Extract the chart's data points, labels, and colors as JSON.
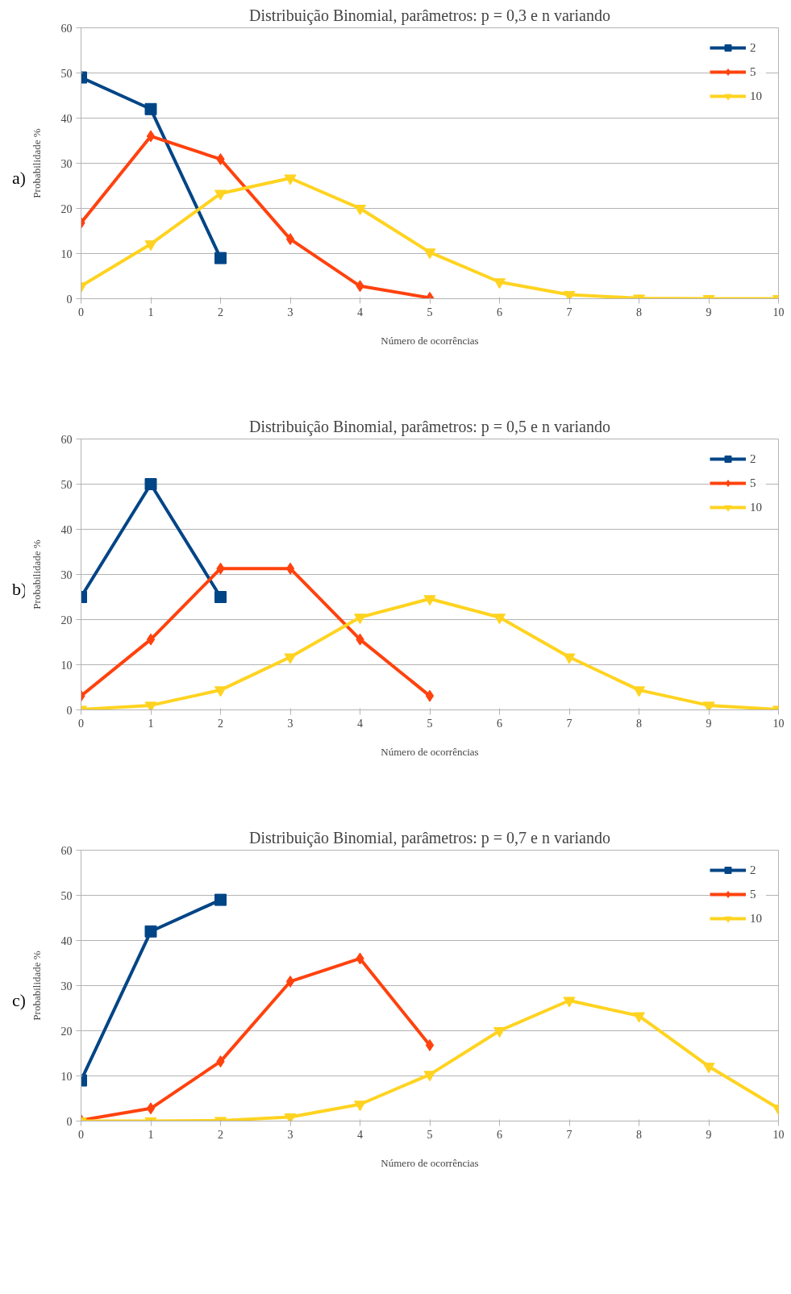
{
  "chart_data": [
    {
      "type": "line",
      "title": "Distribuição Binomial, parâmetros: p = 0,3 e n variando",
      "xlabel": "Número de ocorrências",
      "ylabel": "Probabilidade %",
      "annotations": [
        "a)"
      ],
      "xlim": [
        0,
        10
      ],
      "ylim": [
        0,
        60
      ],
      "xticks": [
        0,
        1,
        2,
        3,
        4,
        5,
        6,
        7,
        8,
        9,
        10
      ],
      "yticks": [
        0,
        10,
        20,
        30,
        40,
        50,
        60
      ],
      "grid": "y",
      "legend": "top right",
      "line_style": "solid",
      "series": [
        {
          "name": "2",
          "color": "#004586",
          "marker": "square",
          "x": [
            0,
            1,
            2
          ],
          "values": [
            49,
            42,
            9
          ]
        },
        {
          "name": "5",
          "color": "#ff420e",
          "marker": "diamond",
          "x": [
            0,
            1,
            2,
            3,
            4,
            5
          ],
          "values": [
            16.8,
            36.0,
            30.9,
            13.2,
            2.8,
            0.2
          ]
        },
        {
          "name": "10",
          "color": "#ffd320",
          "marker": "triangle",
          "x": [
            0,
            1,
            2,
            3,
            4,
            5,
            6,
            7,
            8,
            9,
            10
          ],
          "values": [
            2.8,
            12.1,
            23.3,
            26.7,
            20.0,
            10.3,
            3.7,
            0.9,
            0.1,
            0.0,
            0.0
          ]
        }
      ]
    },
    {
      "type": "line",
      "title": "Distribuição Binomial, parâmetros: p = 0,5 e n variando",
      "xlabel": "Número de ocorrências",
      "ylabel": "Probabilidade %",
      "annotations": [
        "b)"
      ],
      "xlim": [
        0,
        10
      ],
      "ylim": [
        0,
        60
      ],
      "xticks": [
        0,
        1,
        2,
        3,
        4,
        5,
        6,
        7,
        8,
        9,
        10
      ],
      "yticks": [
        0,
        10,
        20,
        30,
        40,
        50,
        60
      ],
      "grid": "y",
      "legend": "top right",
      "line_style": "solid",
      "series": [
        {
          "name": "2",
          "color": "#004586",
          "marker": "square",
          "x": [
            0,
            1,
            2
          ],
          "values": [
            25,
            50,
            25
          ]
        },
        {
          "name": "5",
          "color": "#ff420e",
          "marker": "diamond",
          "x": [
            0,
            1,
            2,
            3,
            4,
            5
          ],
          "values": [
            3.1,
            15.6,
            31.3,
            31.3,
            15.6,
            3.1
          ]
        },
        {
          "name": "10",
          "color": "#ffd320",
          "marker": "triangle",
          "x": [
            0,
            1,
            2,
            3,
            4,
            5,
            6,
            7,
            8,
            9,
            10
          ],
          "values": [
            0.1,
            1.0,
            4.4,
            11.7,
            20.5,
            24.6,
            20.5,
            11.7,
            4.4,
            1.0,
            0.1
          ]
        }
      ]
    },
    {
      "type": "line",
      "title": "Distribuição Binomial, parâmetros: p = 0,7 e n variando",
      "xlabel": "Número de ocorrências",
      "ylabel": "Probabilidade %",
      "annotations": [
        "c)"
      ],
      "xlim": [
        0,
        10
      ],
      "ylim": [
        0,
        60
      ],
      "xticks": [
        0,
        1,
        2,
        3,
        4,
        5,
        6,
        7,
        8,
        9,
        10
      ],
      "yticks": [
        0,
        10,
        20,
        30,
        40,
        50,
        60
      ],
      "grid": "y",
      "legend": "top right",
      "line_style": "solid",
      "series": [
        {
          "name": "2",
          "color": "#004586",
          "marker": "square",
          "x": [
            0,
            1,
            2
          ],
          "values": [
            9,
            42,
            49
          ]
        },
        {
          "name": "5",
          "color": "#ff420e",
          "marker": "diamond",
          "x": [
            0,
            1,
            2,
            3,
            4,
            5
          ],
          "values": [
            0.2,
            2.8,
            13.2,
            30.9,
            36.0,
            16.8
          ]
        },
        {
          "name": "10",
          "color": "#ffd320",
          "marker": "triangle",
          "x": [
            0,
            1,
            2,
            3,
            4,
            5,
            6,
            7,
            8,
            9,
            10
          ],
          "values": [
            0.0,
            0.0,
            0.1,
            0.9,
            3.7,
            10.3,
            20.0,
            26.7,
            23.3,
            12.1,
            2.8
          ]
        }
      ]
    }
  ]
}
